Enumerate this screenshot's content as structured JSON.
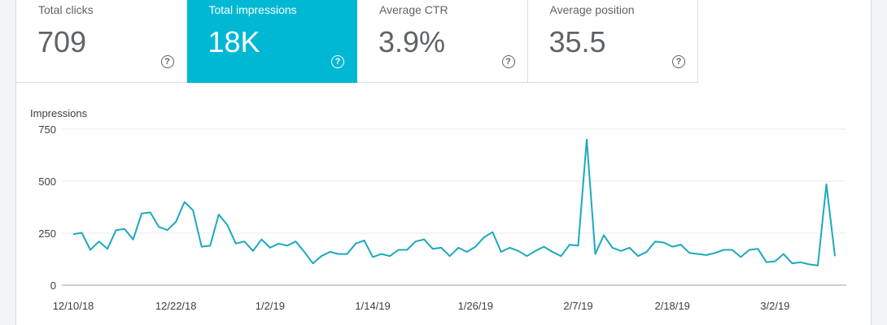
{
  "metrics": [
    {
      "label": "Total clicks",
      "value": "709"
    },
    {
      "label": "Total impressions",
      "value": "18K"
    },
    {
      "label": "Average CTR",
      "value": "3.9%"
    },
    {
      "label": "Average position",
      "value": "35.5"
    }
  ],
  "help_glyph": "?",
  "colors": {
    "accent": "#00b8d4",
    "line": "#1ba9bf"
  },
  "chart_data": {
    "type": "line",
    "ylabel": "Impressions",
    "ylim": [
      0,
      750
    ],
    "yticks": [
      "0",
      "250",
      "500",
      "750"
    ],
    "xticks": [
      {
        "label": "12/10/18",
        "index": 0
      },
      {
        "label": "12/22/18",
        "index": 12
      },
      {
        "label": "1/2/19",
        "index": 23
      },
      {
        "label": "1/14/19",
        "index": 35
      },
      {
        "label": "1/26/19",
        "index": 47
      },
      {
        "label": "2/7/19",
        "index": 59
      },
      {
        "label": "2/18/19",
        "index": 70
      },
      {
        "label": "3/2/19",
        "index": 82
      }
    ],
    "grid": true,
    "series": [
      {
        "values": [
          245,
          252,
          170,
          210,
          175,
          265,
          270,
          220,
          345,
          350,
          280,
          265,
          305,
          400,
          360,
          185,
          190,
          340,
          290,
          200,
          210,
          165,
          220,
          180,
          200,
          190,
          210,
          160,
          105,
          140,
          160,
          150,
          150,
          200,
          215,
          135,
          150,
          140,
          170,
          170,
          210,
          220,
          175,
          180,
          140,
          180,
          160,
          185,
          230,
          255,
          160,
          180,
          165,
          140,
          165,
          185,
          160,
          140,
          195,
          190,
          700,
          150,
          240,
          180,
          165,
          180,
          140,
          160,
          210,
          205,
          185,
          195,
          155,
          150,
          145,
          155,
          170,
          170,
          135,
          170,
          175,
          110,
          115,
          150,
          105,
          110,
          100,
          95,
          485,
          140
        ]
      }
    ]
  }
}
